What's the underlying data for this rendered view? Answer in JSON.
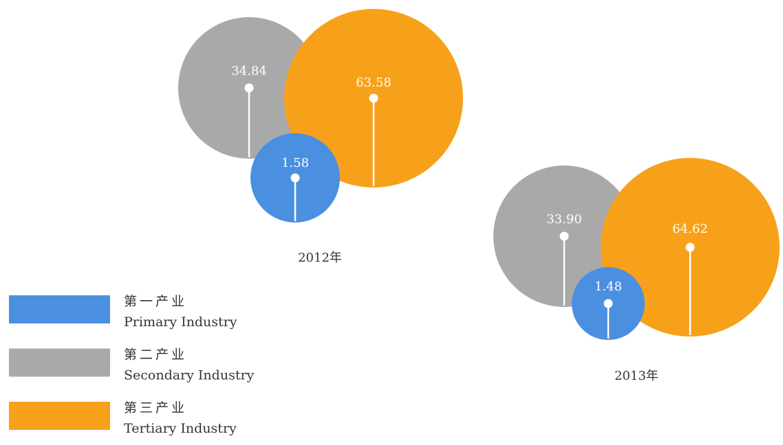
{
  "chart_data": {
    "type": "bubble",
    "categories": [
      "2012年",
      "2013年"
    ],
    "series": [
      {
        "name": "第一产业",
        "name_en": "Primary Industry",
        "color": "#4a8fe0",
        "values": [
          1.58,
          1.48
        ],
        "value_labels": [
          "1.58",
          "1.48"
        ]
      },
      {
        "name": "第二产业",
        "name_en": "Secondary Industry",
        "color": "#a9a9a9",
        "values": [
          34.84,
          33.9
        ],
        "value_labels": [
          "34.84",
          "33.90"
        ]
      },
      {
        "name": "第三产业",
        "name_en": "Tertiary Industry",
        "color": "#f7a11b",
        "values": [
          63.58,
          64.62
        ],
        "value_labels": [
          "63.58",
          "64.62"
        ]
      }
    ]
  }
}
